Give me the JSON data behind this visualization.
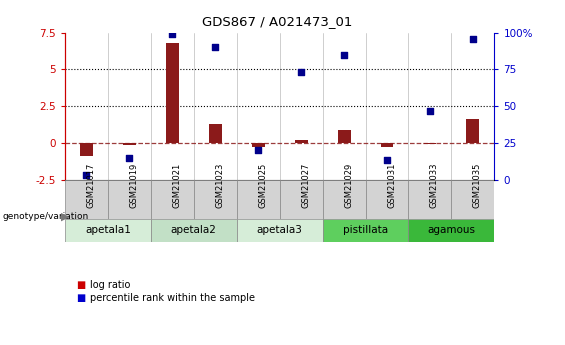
{
  "title": "GDS867 / A021473_01",
  "samples": [
    "GSM21017",
    "GSM21019",
    "GSM21021",
    "GSM21023",
    "GSM21025",
    "GSM21027",
    "GSM21029",
    "GSM21031",
    "GSM21033",
    "GSM21035"
  ],
  "log_ratio": [
    -0.9,
    -0.15,
    6.8,
    1.3,
    -0.3,
    0.2,
    0.9,
    -0.3,
    -0.05,
    1.6
  ],
  "percentile": [
    3,
    15,
    99,
    90,
    20,
    73,
    85,
    13,
    47,
    96
  ],
  "groups": [
    {
      "label": "apetala1",
      "span": [
        0,
        2
      ],
      "color": "#d6edd8"
    },
    {
      "label": "apetala2",
      "span": [
        2,
        4
      ],
      "color": "#c2e0c6"
    },
    {
      "label": "apetala3",
      "span": [
        4,
        6
      ],
      "color": "#d6edd8"
    },
    {
      "label": "pistillata",
      "span": [
        6,
        8
      ],
      "color": "#5ecf5e"
    },
    {
      "label": "agamous",
      "span": [
        8,
        10
      ],
      "color": "#3ab83a"
    }
  ],
  "left_ylim": [
    -2.5,
    7.5
  ],
  "right_ylim": [
    0,
    100
  ],
  "left_yticks": [
    -2.5,
    0,
    2.5,
    5.0,
    7.5
  ],
  "right_yticks": [
    0,
    25,
    50,
    75,
    100
  ],
  "hlines": [
    2.5,
    5.0
  ],
  "bar_color": "#8b1a1a",
  "dot_color": "#00008b",
  "bar_width": 0.3,
  "dot_size": 25,
  "background_color": "#ffffff",
  "legend_items": [
    {
      "label": "log ratio",
      "color": "#cc0000"
    },
    {
      "label": "percentile rank within the sample",
      "color": "#0000cc"
    }
  ]
}
